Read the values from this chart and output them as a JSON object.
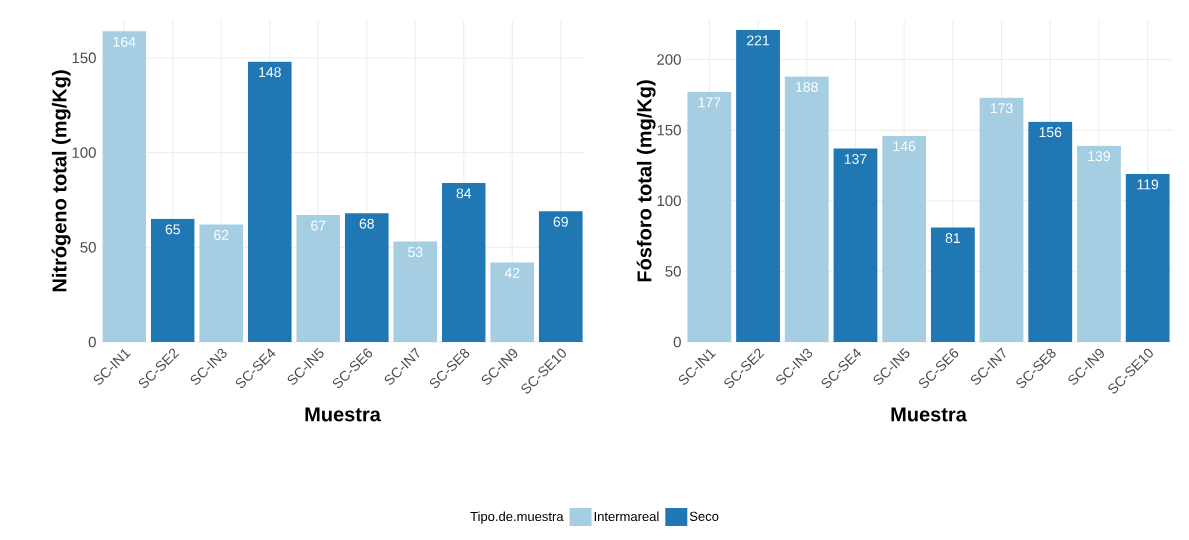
{
  "chart_data": [
    {
      "type": "bar",
      "xlabel": "Muestra",
      "ylabel": "Nitrógeno total (mg/Kg)",
      "categories": [
        "SC-IN1",
        "SC-SE2",
        "SC-IN3",
        "SC-SE4",
        "SC-IN5",
        "SC-SE6",
        "SC-IN7",
        "SC-SE8",
        "SC-IN9",
        "SC-SE10"
      ],
      "series": [
        {
          "name": "Intermareal",
          "color": "#a6cee3",
          "values": [
            164,
            null,
            62,
            null,
            67,
            null,
            53,
            null,
            42,
            null
          ]
        },
        {
          "name": "Seco",
          "color": "#1f78b4",
          "values": [
            null,
            65,
            null,
            148,
            null,
            68,
            null,
            84,
            null,
            69
          ]
        }
      ],
      "ylim": [
        0,
        170
      ],
      "yticks": [
        0,
        50,
        100,
        150
      ],
      "grid": true,
      "data_labels": true,
      "legend": "bottom",
      "legend_title": "Tipo.de.muestra"
    },
    {
      "type": "bar",
      "xlabel": "Muestra",
      "ylabel": "Fósforo total (mg/Kg)",
      "categories": [
        "SC-IN1",
        "SC-SE2",
        "SC-IN3",
        "SC-SE4",
        "SC-IN5",
        "SC-SE6",
        "SC-IN7",
        "SC-SE8",
        "SC-IN9",
        "SC-SE10"
      ],
      "values": [
        177,
        221,
        188,
        137,
        146,
        81,
        173,
        156,
        139,
        119
      ],
      "colors": [
        "#a6cee3",
        "#1f78b4",
        "#a6cee3",
        "#1f78b4",
        "#a6cee3",
        "#1f78b4",
        "#a6cee3",
        "#1f78b4",
        "#a6cee3",
        "#1f78b4"
      ],
      "ylim": [
        0,
        228
      ],
      "yticks": [
        0,
        50,
        100,
        150,
        200
      ],
      "grid": true,
      "data_labels": true
    }
  ]
}
